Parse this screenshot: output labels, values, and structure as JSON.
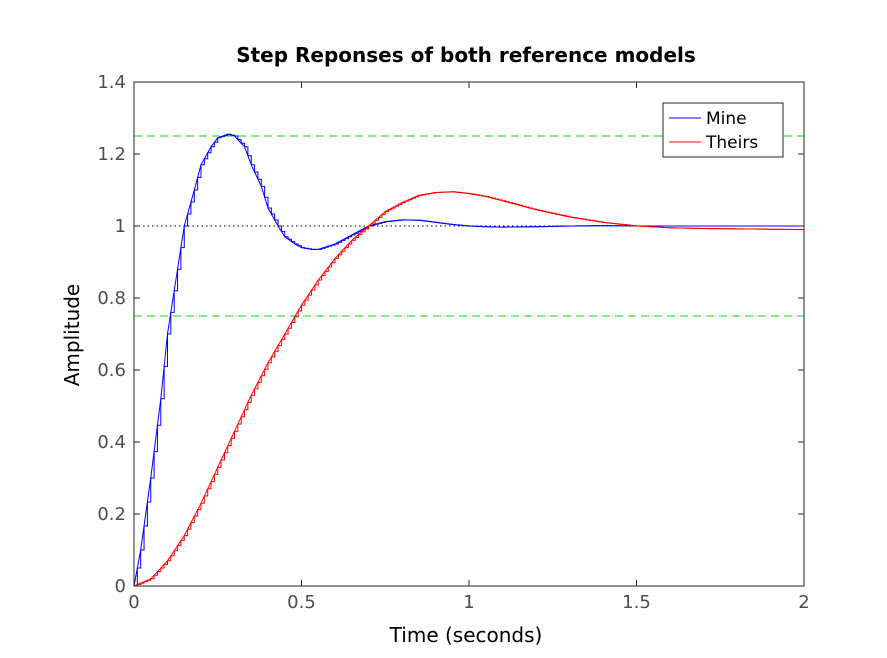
{
  "chart_data": {
    "type": "line",
    "title": "Step Reponses of both reference models",
    "xlabel": "Time (seconds)",
    "ylabel": "Amplitude",
    "xlim": [
      0,
      2
    ],
    "ylim": [
      0,
      1.4
    ],
    "x_ticks": [
      "0",
      "0.5",
      "1",
      "1.5",
      "2"
    ],
    "y_ticks": [
      "0",
      "0.2",
      "0.4",
      "0.6",
      "0.8",
      "1",
      "1.2",
      "1.4"
    ],
    "grid": false,
    "legend": {
      "location": "top-right",
      "entries": [
        "Mine",
        "Theirs"
      ]
    },
    "reference_lines": [
      {
        "y": 1.25,
        "style": "dashed",
        "color": "#00e000"
      },
      {
        "y": 0.75,
        "style": "dashed",
        "color": "#00e000"
      },
      {
        "y": 1.0,
        "style": "dotted",
        "color": "#000000"
      }
    ],
    "series": [
      {
        "name": "Mine",
        "color": "#0000ff",
        "x": [
          0,
          0.02,
          0.05,
          0.08,
          0.1,
          0.13,
          0.15,
          0.18,
          0.2,
          0.23,
          0.25,
          0.28,
          0.3,
          0.33,
          0.35,
          0.38,
          0.4,
          0.43,
          0.45,
          0.48,
          0.5,
          0.53,
          0.55,
          0.6,
          0.65,
          0.7,
          0.75,
          0.8,
          0.85,
          0.9,
          0.95,
          1.0,
          1.05,
          1.1,
          1.2,
          1.3,
          1.4,
          1.5,
          1.6,
          1.8,
          2.0
        ],
        "y": [
          0,
          0.1,
          0.3,
          0.52,
          0.7,
          0.88,
          1.0,
          1.1,
          1.17,
          1.22,
          1.245,
          1.255,
          1.25,
          1.22,
          1.17,
          1.11,
          1.05,
          1.0,
          0.97,
          0.95,
          0.94,
          0.935,
          0.935,
          0.95,
          0.975,
          1.0,
          1.012,
          1.017,
          1.016,
          1.01,
          1.004,
          1.0,
          0.998,
          0.997,
          0.998,
          1.0,
          1.001,
          1.0,
          1.0,
          1.0,
          1.0
        ]
      },
      {
        "name": "Theirs",
        "color": "#ff0000",
        "x": [
          0,
          0.05,
          0.1,
          0.15,
          0.2,
          0.25,
          0.3,
          0.35,
          0.4,
          0.45,
          0.5,
          0.55,
          0.6,
          0.65,
          0.7,
          0.75,
          0.8,
          0.85,
          0.9,
          0.95,
          1.0,
          1.05,
          1.1,
          1.2,
          1.3,
          1.4,
          1.5,
          1.6,
          1.7,
          1.8,
          1.9,
          2.0
        ],
        "y": [
          0,
          0.02,
          0.07,
          0.14,
          0.23,
          0.33,
          0.43,
          0.53,
          0.62,
          0.7,
          0.78,
          0.85,
          0.91,
          0.96,
          1.0,
          1.04,
          1.065,
          1.085,
          1.093,
          1.095,
          1.09,
          1.082,
          1.07,
          1.045,
          1.025,
          1.01,
          1.0,
          0.995,
          0.993,
          0.992,
          0.991,
          0.99
        ]
      }
    ]
  }
}
